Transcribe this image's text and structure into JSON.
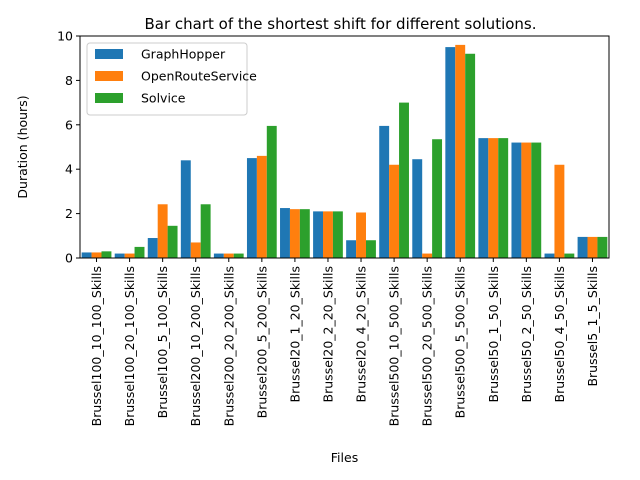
{
  "chart_data": {
    "type": "bar",
    "title": "Bar chart of the shortest shift for different solutions.",
    "xlabel": "Files",
    "ylabel": "Duration (hours)",
    "ylim": [
      0,
      10
    ],
    "yticks": [
      0,
      2,
      4,
      6,
      8,
      10
    ],
    "grid": false,
    "legend_position": "top-left",
    "categories": [
      "Brussel100_10_100_Skills",
      "Brussel100_20_100_Skills",
      "Brussel100_5_100_Skills",
      "Brussel200_10_200_Skills",
      "Brussel200_20_200_Skills",
      "Brussel200_5_200_Skills",
      "Brussel20_1_20_Skills",
      "Brussel20_2_20_Skills",
      "Brussel20_4_20_Skills",
      "Brussel500_10_500_Skills",
      "Brussel500_20_500_Skills",
      "Brussel500_5_500_Skills",
      "Brussel50_1_50_Skills",
      "Brussel50_2_50_Skills",
      "Brussel50_4_50_Skills",
      "Brussel5_1_5_Skills"
    ],
    "series": [
      {
        "name": "GraphHopper",
        "color": "#1f77b4",
        "values": [
          0.25,
          0.2,
          0.9,
          4.4,
          0.2,
          4.5,
          2.25,
          2.1,
          0.8,
          5.95,
          4.45,
          9.5,
          5.4,
          5.2,
          0.2,
          0.95
        ]
      },
      {
        "name": "OpenRouteService",
        "color": "#ff7f0e",
        "values": [
          0.25,
          0.2,
          2.42,
          0.7,
          0.2,
          4.6,
          2.2,
          2.1,
          2.05,
          4.2,
          0.2,
          9.6,
          5.4,
          5.2,
          4.2,
          0.95
        ]
      },
      {
        "name": "Solvice",
        "color": "#2ca02c",
        "values": [
          0.3,
          0.5,
          1.45,
          2.42,
          0.2,
          5.95,
          2.2,
          2.1,
          0.8,
          7.0,
          5.35,
          9.2,
          5.4,
          5.2,
          0.2,
          0.95
        ]
      }
    ]
  }
}
